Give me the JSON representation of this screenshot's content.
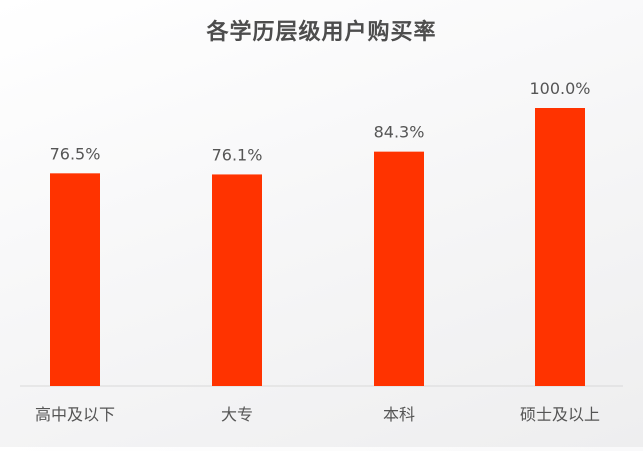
{
  "chart_data": {
    "type": "bar",
    "title": "各学历层级用户购买率",
    "categories": [
      "高中及以下",
      "大专",
      "本科",
      "硕士及以上"
    ],
    "values": [
      76.5,
      76.1,
      84.3,
      100.0
    ],
    "value_labels": [
      "76.5%",
      "76.1%",
      "84.3%",
      "100.0%"
    ],
    "xlabel": "",
    "ylabel": "",
    "ylim": [
      0,
      100
    ],
    "grid": false,
    "legend": "none",
    "bar_color": "#ff3300",
    "label_color": "#555555"
  }
}
